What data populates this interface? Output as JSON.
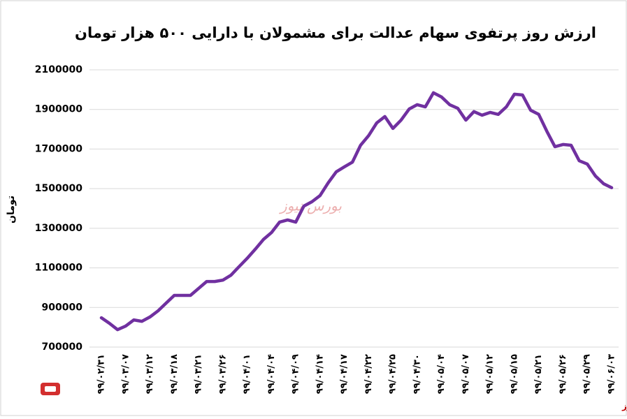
{
  "chart_data": {
    "type": "line",
    "title": "ارزش روز پرتفوی سهام عدالت برای مشمولان با دارایی ۵۰۰ هزار تومان",
    "y_label": "تومان",
    "watermark": "بورس نیوز",
    "source": "بورس نیوز",
    "categories": [
      "۹۹/۰۲/۳۱",
      null,
      null,
      "۹۹/۰۳/۰۷",
      null,
      null,
      "۹۹/۰۳/۱۲",
      null,
      null,
      "۹۹/۰۳/۱۸",
      null,
      null,
      "۹۹/۰۳/۲۱",
      null,
      null,
      "۹۹/۰۳/۲۶",
      null,
      null,
      "۹۹/۰۴/۰۱",
      null,
      null,
      "۹۹/۰۴/۰۴",
      null,
      null,
      "۹۹/۰۴/۰۹",
      null,
      null,
      "۹۹/۰۴/۱۴",
      null,
      null,
      "۹۹/۰۴/۱۷",
      null,
      null,
      "۹۹/۰۴/۲۲",
      null,
      null,
      "۹۹/۰۴/۲۵",
      null,
      null,
      "۹۹/۰۴/۳۰",
      null,
      null,
      "۹۹/۰۵/۰۴",
      null,
      null,
      "۹۹/۰۵/۰۷",
      null,
      null,
      "۹۹/۰۵/۱۲",
      null,
      null,
      "۹۹/۰۵/۱۵",
      null,
      null,
      "۹۹/۰۵/۲۱",
      null,
      null,
      "۹۹/۰۵/۲۶",
      null,
      null,
      "۹۹/۰۵/۲۹",
      null,
      null,
      "۹۹/۰۶/۰۳"
    ],
    "series": [
      {
        "name": "ارزش روز",
        "color": "#7030a0",
        "values": [
          848000,
          820000,
          788000,
          806000,
          837000,
          830000,
          852000,
          883000,
          922000,
          961000,
          961000,
          961000,
          996000,
          1031000,
          1031000,
          1038000,
          1063000,
          1106000,
          1148000,
          1194000,
          1243000,
          1278000,
          1331000,
          1342000,
          1331000,
          1412000,
          1434000,
          1465000,
          1529000,
          1585000,
          1610000,
          1634000,
          1719000,
          1768000,
          1832000,
          1864000,
          1804000,
          1846000,
          1902000,
          1924000,
          1913000,
          1984000,
          1963000,
          1924000,
          1906000,
          1846000,
          1889000,
          1871000,
          1885000,
          1875000,
          1913000,
          1977000,
          1973000,
          1896000,
          1875000,
          1790000,
          1712000,
          1723000,
          1719000,
          1641000,
          1624000,
          1564000,
          1525000,
          1505000
        ]
      }
    ],
    "ylim": [
      700000,
      2100000
    ],
    "yticks": [
      700000,
      900000,
      1100000,
      1300000,
      1500000,
      1700000,
      1900000,
      2100000
    ],
    "grid": true
  }
}
